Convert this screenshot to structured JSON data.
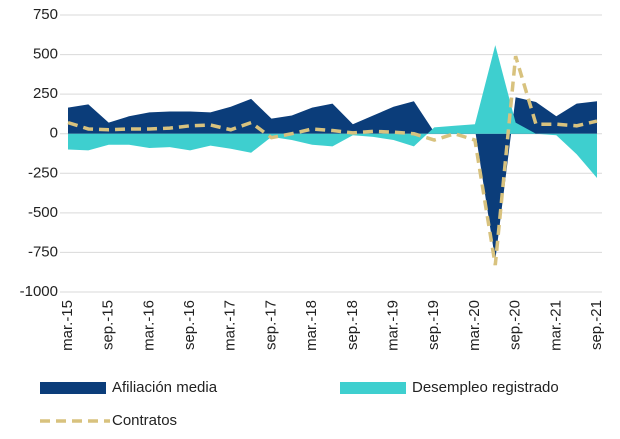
{
  "chart_data": {
    "type": "area",
    "categories": [
      "mar.-15",
      null,
      "sep.-15",
      null,
      "mar.-16",
      null,
      "sep.-16",
      null,
      "mar.-17",
      null,
      "sep.-17",
      null,
      "mar.-18",
      null,
      "sep.-18",
      null,
      "mar.-19",
      null,
      "sep.-19",
      null,
      "mar.-20",
      null,
      "sep.-20",
      null,
      "mar.-21",
      null,
      "sep.-21"
    ],
    "series": [
      {
        "name": "Afiliación media",
        "color": "#0b3d7a",
        "style": "area",
        "values": [
          165,
          185,
          70,
          110,
          135,
          140,
          140,
          135,
          170,
          220,
          95,
          115,
          165,
          190,
          60,
          115,
          170,
          205,
          10,
          20,
          30,
          -800,
          230,
          200,
          110,
          190,
          205
        ]
      },
      {
        "name": "Desempleo registrado",
        "color": "#3ecfcf",
        "style": "area",
        "values": [
          -100,
          -105,
          -70,
          -70,
          -90,
          -85,
          -105,
          -75,
          -95,
          -120,
          -20,
          -40,
          -70,
          -80,
          -10,
          -20,
          -40,
          -80,
          40,
          50,
          60,
          560,
          70,
          0,
          -10,
          -130,
          -280
        ]
      },
      {
        "name": "Contratos",
        "color": "#d8c27e",
        "style": "dashed-line",
        "values": [
          70,
          30,
          25,
          30,
          30,
          35,
          50,
          55,
          25,
          70,
          -25,
          0,
          30,
          20,
          5,
          15,
          10,
          0,
          -40,
          0,
          -40,
          -830,
          490,
          60,
          60,
          50,
          80
        ]
      }
    ],
    "ylim": [
      -1000,
      750
    ],
    "yticks": [
      -1000,
      -750,
      -500,
      -250,
      0,
      250,
      500,
      750
    ],
    "grid": true
  }
}
